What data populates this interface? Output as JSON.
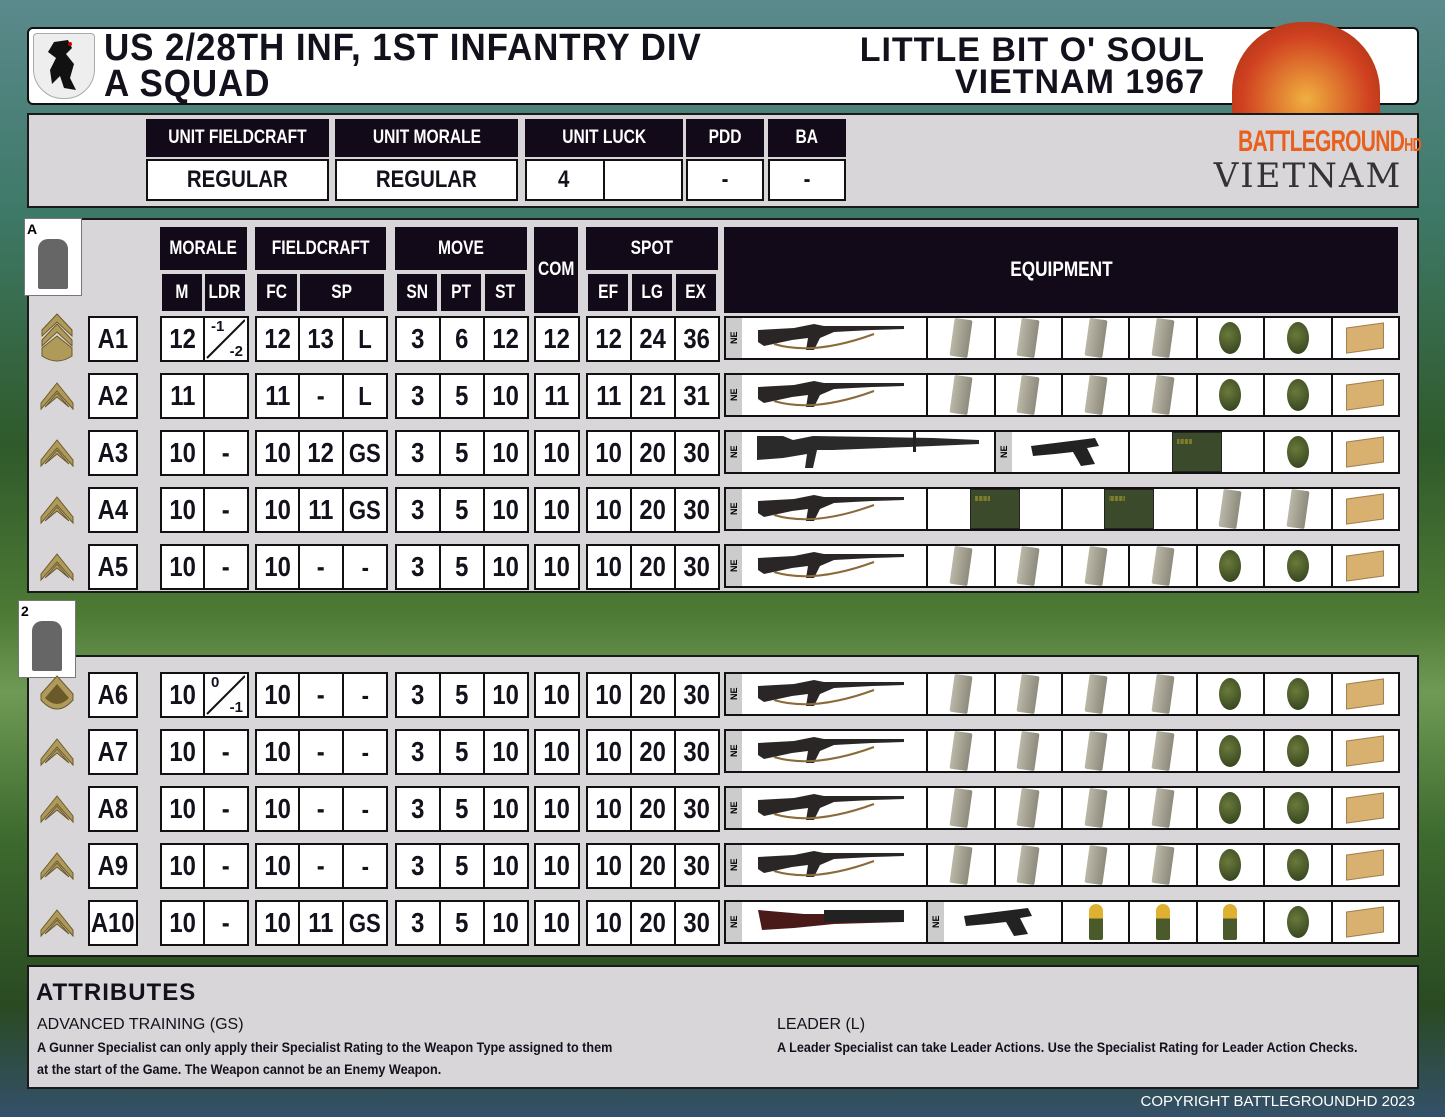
{
  "header": {
    "title_line1": "US 2/28TH INF, 1ST INFANTRY DIV",
    "title_line2": "A SQUAD",
    "scenario_line1": "LITTLE BIT O' SOUL",
    "scenario_line2": "VIETNAM 1967"
  },
  "logo": {
    "line1": "BATTLEGROUND",
    "hd": "HD",
    "line2": "VIETNAM"
  },
  "unit_stats": {
    "headers": [
      "UNIT FIELDCRAFT",
      "UNIT MORALE",
      "UNIT LUCK",
      "PDD",
      "BA"
    ],
    "fieldcraft": "REGULAR",
    "morale": "REGULAR",
    "luck": "4",
    "luck_extra": "",
    "pdd": "-",
    "ba": "-"
  },
  "table_headers": {
    "groups": [
      "MORALE",
      "FIELDCRAFT",
      "MOVE",
      "COM",
      "SPOT",
      "EQUIPMENT"
    ],
    "sub": [
      "M",
      "LDR",
      "FC",
      "SP",
      "SN",
      "PT",
      "ST",
      "EF",
      "LG",
      "EX"
    ]
  },
  "cards": [
    {
      "label": "A"
    },
    {
      "label": "2"
    }
  ],
  "ne_label": "NE",
  "colors": {
    "header_bg": "#120a18",
    "panel_bg": "#d9d6d9",
    "rank_gold": "#b09a5a"
  },
  "fireteams": [
    {
      "card": "A",
      "rows": [
        {
          "rank": "sergeant-first-class",
          "name": "A1",
          "m": "12",
          "ldr": {
            "top": "-1",
            "bottom": "-2"
          },
          "fc": "12",
          "sp": "13",
          "spec": "L",
          "sn": "3",
          "pt": "6",
          "st": "12",
          "com": "12",
          "ef": "12",
          "lg": "24",
          "ex": "36",
          "equipment": [
            {
              "type": "rifle",
              "ne": true
            },
            {
              "type": "magazine"
            },
            {
              "type": "magazine"
            },
            {
              "type": "magazine"
            },
            {
              "type": "magazine"
            },
            {
              "type": "grenade"
            },
            {
              "type": "grenade"
            },
            {
              "type": "ration"
            }
          ]
        },
        {
          "rank": "corporal",
          "name": "A2",
          "m": "11",
          "ldr": "",
          "fc": "11",
          "sp": "-",
          "spec": "L",
          "sn": "3",
          "pt": "5",
          "st": "10",
          "com": "11",
          "ef": "11",
          "lg": "21",
          "ex": "31",
          "equipment": [
            {
              "type": "rifle",
              "ne": true
            },
            {
              "type": "magazine"
            },
            {
              "type": "magazine"
            },
            {
              "type": "magazine"
            },
            {
              "type": "magazine"
            },
            {
              "type": "grenade"
            },
            {
              "type": "grenade"
            },
            {
              "type": "ration"
            }
          ]
        },
        {
          "rank": "corporal",
          "name": "A3",
          "m": "10",
          "ldr": "-",
          "fc": "10",
          "sp": "12",
          "spec": "GS",
          "sn": "3",
          "pt": "5",
          "st": "10",
          "com": "10",
          "ef": "10",
          "lg": "20",
          "ex": "30",
          "equipment": [
            {
              "type": "machine-gun",
              "ne": true
            },
            {
              "type": "pistol",
              "ne": true
            },
            {
              "type": "ammo-can"
            },
            {
              "type": "grenade"
            },
            {
              "type": "ration"
            }
          ]
        },
        {
          "rank": "corporal",
          "name": "A4",
          "m": "10",
          "ldr": "-",
          "fc": "10",
          "sp": "11",
          "spec": "GS",
          "sn": "3",
          "pt": "5",
          "st": "10",
          "com": "10",
          "ef": "10",
          "lg": "20",
          "ex": "30",
          "equipment": [
            {
              "type": "rifle",
              "ne": true
            },
            {
              "type": "ammo-can"
            },
            {
              "type": "ammo-can"
            },
            {
              "type": "magazine"
            },
            {
              "type": "magazine"
            },
            {
              "type": "ration"
            }
          ]
        },
        {
          "rank": "corporal",
          "name": "A5",
          "m": "10",
          "ldr": "-",
          "fc": "10",
          "sp": "-",
          "spec": "-",
          "sn": "3",
          "pt": "5",
          "st": "10",
          "com": "10",
          "ef": "10",
          "lg": "20",
          "ex": "30",
          "equipment": [
            {
              "type": "rifle",
              "ne": true
            },
            {
              "type": "magazine"
            },
            {
              "type": "magazine"
            },
            {
              "type": "magazine"
            },
            {
              "type": "magazine"
            },
            {
              "type": "grenade"
            },
            {
              "type": "grenade"
            },
            {
              "type": "ration"
            }
          ]
        }
      ]
    },
    {
      "card": "2",
      "rows": [
        {
          "rank": "private-first-class",
          "name": "A6",
          "m": "10",
          "ldr": {
            "top": "0",
            "bottom": "-1"
          },
          "fc": "10",
          "sp": "-",
          "spec": "-",
          "sn": "3",
          "pt": "5",
          "st": "10",
          "com": "10",
          "ef": "10",
          "lg": "20",
          "ex": "30",
          "equipment": [
            {
              "type": "rifle",
              "ne": true
            },
            {
              "type": "magazine"
            },
            {
              "type": "magazine"
            },
            {
              "type": "magazine"
            },
            {
              "type": "magazine"
            },
            {
              "type": "grenade"
            },
            {
              "type": "grenade"
            },
            {
              "type": "ration"
            }
          ]
        },
        {
          "rank": "corporal",
          "name": "A7",
          "m": "10",
          "ldr": "-",
          "fc": "10",
          "sp": "-",
          "spec": "-",
          "sn": "3",
          "pt": "5",
          "st": "10",
          "com": "10",
          "ef": "10",
          "lg": "20",
          "ex": "30",
          "equipment": [
            {
              "type": "rifle",
              "ne": true
            },
            {
              "type": "magazine"
            },
            {
              "type": "magazine"
            },
            {
              "type": "magazine"
            },
            {
              "type": "magazine"
            },
            {
              "type": "grenade"
            },
            {
              "type": "grenade"
            },
            {
              "type": "ration"
            }
          ]
        },
        {
          "rank": "corporal",
          "name": "A8",
          "m": "10",
          "ldr": "-",
          "fc": "10",
          "sp": "-",
          "spec": "-",
          "sn": "3",
          "pt": "5",
          "st": "10",
          "com": "10",
          "ef": "10",
          "lg": "20",
          "ex": "30",
          "equipment": [
            {
              "type": "rifle",
              "ne": true
            },
            {
              "type": "magazine"
            },
            {
              "type": "magazine"
            },
            {
              "type": "magazine"
            },
            {
              "type": "magazine"
            },
            {
              "type": "grenade"
            },
            {
              "type": "grenade"
            },
            {
              "type": "ration"
            }
          ]
        },
        {
          "rank": "corporal",
          "name": "A9",
          "m": "10",
          "ldr": "-",
          "fc": "10",
          "sp": "-",
          "spec": "-",
          "sn": "3",
          "pt": "5",
          "st": "10",
          "com": "10",
          "ef": "10",
          "lg": "20",
          "ex": "30",
          "equipment": [
            {
              "type": "rifle",
              "ne": true
            },
            {
              "type": "magazine"
            },
            {
              "type": "magazine"
            },
            {
              "type": "magazine"
            },
            {
              "type": "magazine"
            },
            {
              "type": "grenade"
            },
            {
              "type": "grenade"
            },
            {
              "type": "ration"
            }
          ]
        },
        {
          "rank": "corporal",
          "name": "A10",
          "m": "10",
          "ldr": "-",
          "fc": "10",
          "sp": "11",
          "spec": "GS",
          "sn": "3",
          "pt": "5",
          "st": "10",
          "com": "10",
          "ef": "10",
          "lg": "20",
          "ex": "30",
          "equipment": [
            {
              "type": "grenade-launcher",
              "ne": true
            },
            {
              "type": "pistol",
              "ne": true
            },
            {
              "type": "40mm-round"
            },
            {
              "type": "40mm-round"
            },
            {
              "type": "40mm-round"
            },
            {
              "type": "grenade"
            },
            {
              "type": "ration"
            }
          ]
        }
      ]
    }
  ],
  "attributes": {
    "title": "ATTRIBUTES",
    "items": [
      {
        "name": "ADVANCED TRAINING (GS)",
        "desc1": "A Gunner Specialist can only apply their Specialist Rating to the Weapon Type assigned to them",
        "desc2": "at the start of the Game.  The Weapon cannot be an Enemy Weapon."
      },
      {
        "name": "LEADER (L)",
        "desc1": "A Leader Specialist can take Leader Actions. Use the Specialist Rating for Leader Action Checks.",
        "desc2": ""
      }
    ]
  },
  "copyright": "COPYRIGHT BATTLEGROUNDHD 2023"
}
